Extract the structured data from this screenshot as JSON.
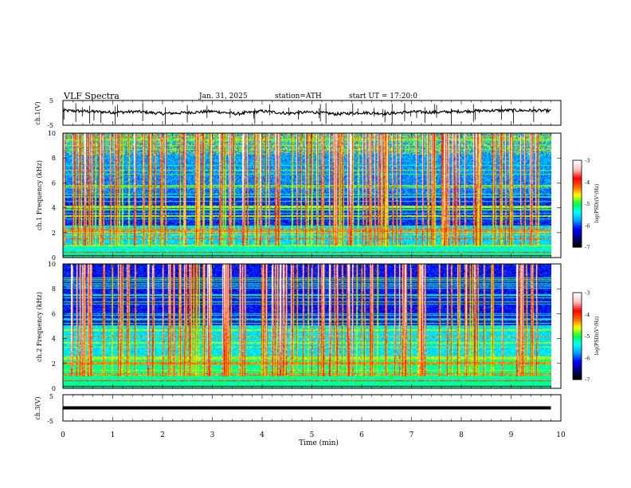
{
  "header": {
    "title": "VLF Spectra",
    "date": "Jan. 31, 2025",
    "station": "station=ATH",
    "start": "start UT = 17:20:0"
  },
  "colormap": [
    "#000000",
    "#000080",
    "#0000ff",
    "#00a0ff",
    "#00ffff",
    "#00ff40",
    "#ffff00",
    "#ff6000",
    "#ff0000",
    "#ffc0c0",
    "#ffffff"
  ],
  "chart_data": [
    {
      "type": "line",
      "panel": "ch1",
      "ylabel": "ch.1(V)",
      "ylim": [
        -5,
        5
      ],
      "yticks": [
        "5",
        "-5"
      ],
      "x": [
        0,
        0.5,
        1,
        1.5,
        2,
        2.5,
        3,
        3.5,
        4,
        4.5,
        5,
        5.5,
        6,
        6.5,
        7,
        7.5,
        8,
        8.5,
        9,
        9.5,
        9.8
      ],
      "values": [
        0.9,
        0.6,
        0.2,
        0.5,
        -0.3,
        0.1,
        0.6,
        -0.4,
        0.7,
        -0.2,
        0.3,
        -0.5,
        0.1,
        -0.3,
        0.4,
        0.2,
        0.6,
        0.9,
        1.0,
        0.9,
        0.8
      ]
    },
    {
      "type": "heatmap",
      "panel": "ch1-spectrogram",
      "ylabel": "ch.1 Frequency (kHz)",
      "ylim": [
        0,
        10
      ],
      "yticks": [
        "0",
        "2",
        "4",
        "6",
        "8",
        "10"
      ],
      "colorbar": {
        "label": "log(PSD)(V²/Hz)",
        "range": [
          -7,
          -3
        ],
        "ticks": [
          "-3",
          "-4",
          "-5",
          "-6",
          "-7"
        ]
      }
    },
    {
      "type": "heatmap",
      "panel": "ch2-spectrogram",
      "ylabel": "ch.2 Frequency (kHz)",
      "ylim": [
        0,
        10
      ],
      "yticks": [
        "0",
        "2",
        "4",
        "6",
        "8",
        "10"
      ],
      "colorbar": {
        "label": "log(PSD)(V²/Hz)",
        "range": [
          -7,
          -3
        ],
        "ticks": [
          "-3",
          "-4",
          "-5",
          "-6",
          "-7"
        ]
      }
    },
    {
      "type": "line",
      "panel": "ch3",
      "ylabel": "ch.3(V)",
      "ylim": [
        -5,
        5
      ],
      "yticks": [
        "5",
        "-5"
      ],
      "x": [
        0,
        9.8
      ],
      "values": [
        0,
        0
      ]
    }
  ],
  "xaxis": {
    "label": "Time (min)",
    "xlim": [
      0,
      10
    ],
    "ticks": [
      "0",
      "1",
      "2",
      "3",
      "4",
      "5",
      "6",
      "7",
      "8",
      "9",
      "10"
    ]
  }
}
